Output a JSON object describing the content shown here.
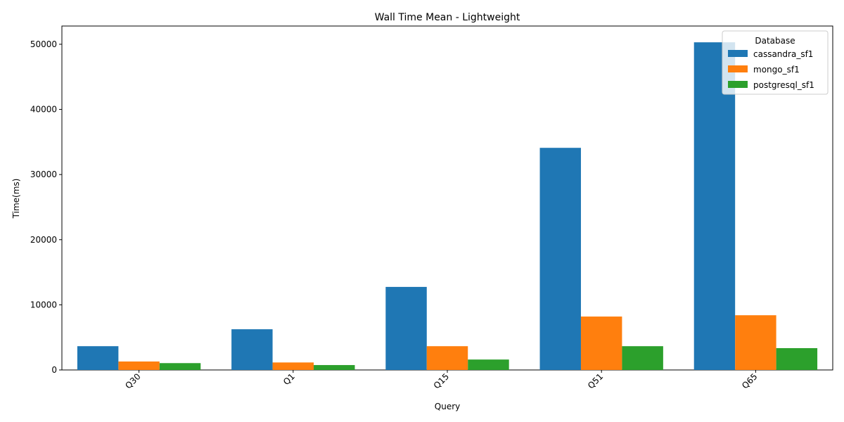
{
  "chart_data": {
    "type": "bar",
    "title": "Wall Time Mean - Lightweight",
    "xlabel": "Query",
    "ylabel": "Time(ms)",
    "categories": [
      "Q30",
      "Q1",
      "Q15",
      "Q51",
      "Q65"
    ],
    "series": [
      {
        "name": "cassandra_sf1",
        "color": "#1f77b4",
        "values": [
          3650,
          6250,
          12750,
          34100,
          50300
        ]
      },
      {
        "name": "mongo_sf1",
        "color": "#ff7f0e",
        "values": [
          1300,
          1150,
          3650,
          8200,
          8400
        ]
      },
      {
        "name": "postgresql_sf1",
        "color": "#2ca02c",
        "values": [
          1050,
          750,
          1600,
          3650,
          3350
        ]
      }
    ],
    "ylim": [
      0,
      52800
    ],
    "yticks": [
      0,
      10000,
      20000,
      30000,
      40000,
      50000
    ],
    "legend": {
      "title": "Database",
      "placement": "top-right"
    },
    "grid": false
  }
}
